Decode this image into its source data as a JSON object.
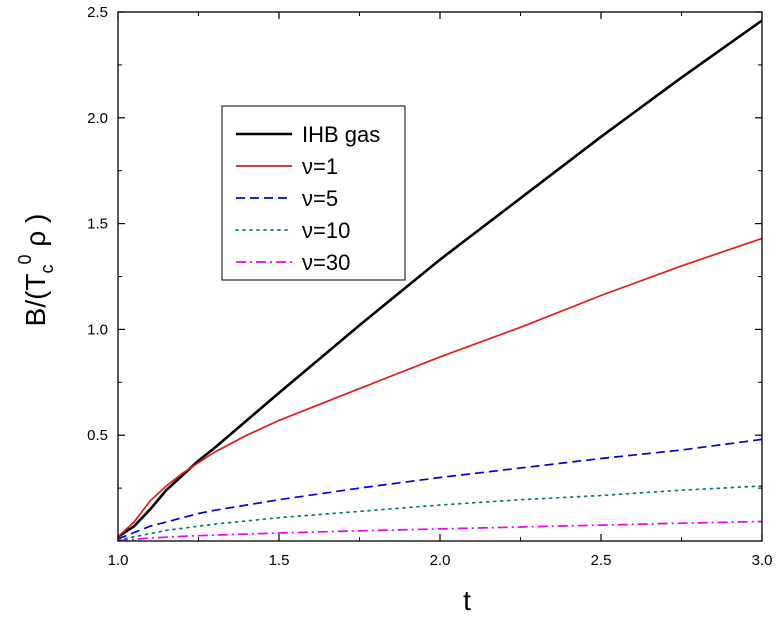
{
  "chart_data": {
    "type": "line",
    "xlabel": "t",
    "ylabel": "B/(T",
    "ylabel_sub": "c",
    "ylabel_sup": "0",
    "ylabel_tail": " ρ )",
    "xlim": [
      1.0,
      3.0
    ],
    "ylim": [
      0.0,
      2.5
    ],
    "x_ticks": [
      "1.0",
      "1.5",
      "2.0",
      "2.5",
      "3.0"
    ],
    "y_ticks": [
      "0.5",
      "1.0",
      "1.5",
      "2.0",
      "2.5"
    ],
    "grid": false,
    "legend_position": "top-left",
    "x": [
      1.0,
      1.05,
      1.1,
      1.15,
      1.2,
      1.25,
      1.3,
      1.4,
      1.5,
      1.75,
      2.0,
      2.25,
      2.5,
      2.75,
      3.0
    ],
    "series": [
      {
        "name": "IHB gas",
        "color": "#000000",
        "style": "solid",
        "values": [
          0.02,
          0.07,
          0.15,
          0.24,
          0.31,
          0.38,
          0.44,
          0.57,
          0.7,
          1.02,
          1.33,
          1.62,
          1.91,
          2.19,
          2.46
        ]
      },
      {
        "name": "ν=1",
        "color": "#e41a1c",
        "style": "solid",
        "values": [
          0.02,
          0.09,
          0.19,
          0.26,
          0.32,
          0.37,
          0.42,
          0.5,
          0.57,
          0.72,
          0.87,
          1.01,
          1.16,
          1.3,
          1.43
        ]
      },
      {
        "name": "ν=5",
        "color": "#0000dd",
        "style": "dashed",
        "values": [
          0.01,
          0.04,
          0.07,
          0.09,
          0.11,
          0.13,
          0.145,
          0.17,
          0.195,
          0.25,
          0.3,
          0.345,
          0.39,
          0.43,
          0.48
        ]
      },
      {
        "name": "ν=10",
        "color": "#007a7a",
        "style": "dotted",
        "values": [
          0.005,
          0.02,
          0.035,
          0.05,
          0.06,
          0.07,
          0.08,
          0.095,
          0.11,
          0.14,
          0.17,
          0.195,
          0.215,
          0.24,
          0.26
        ]
      },
      {
        "name": "ν=30",
        "color": "#ee00ee",
        "style": "dashdot",
        "values": [
          0.002,
          0.008,
          0.014,
          0.018,
          0.022,
          0.025,
          0.028,
          0.033,
          0.038,
          0.048,
          0.057,
          0.066,
          0.075,
          0.084,
          0.092
        ]
      }
    ]
  }
}
